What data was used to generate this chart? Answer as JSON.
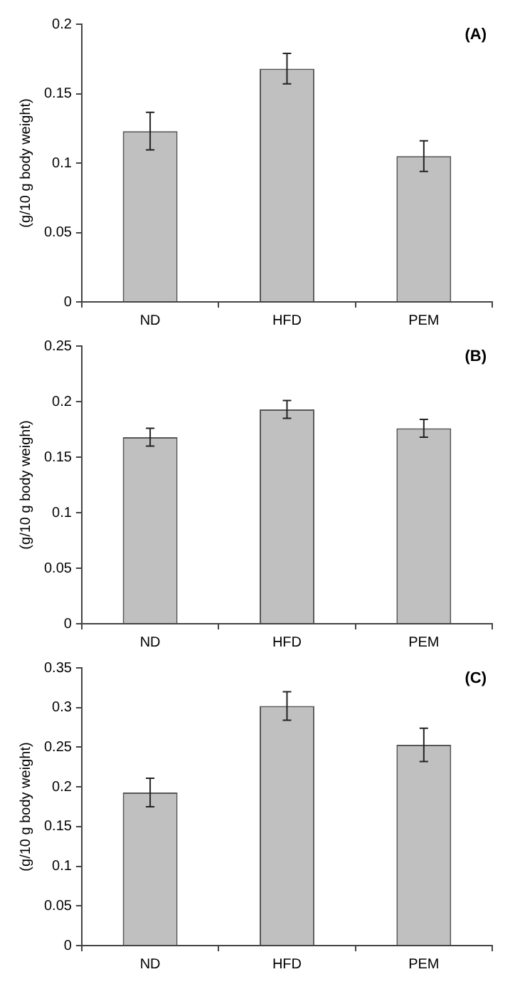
{
  "chart_data": [
    {
      "type": "bar",
      "ylabel": "(g/10 g body weight)",
      "annotations": [
        "(A)"
      ],
      "categories": [
        "ND",
        "HFD",
        "PEM"
      ],
      "values": [
        0.123,
        0.168,
        0.105
      ],
      "errors": [
        0.0135,
        0.011,
        0.011
      ],
      "color": "#c0c0c0",
      "ylim": [
        0,
        0.2
      ],
      "yticks": [
        0,
        0.05,
        0.1,
        0.15,
        0.2
      ],
      "grid": false
    },
    {
      "type": "bar",
      "ylabel": "(g/10 g body weight)",
      "annotations": [
        "(B)"
      ],
      "categories": [
        "ND",
        "HFD",
        "PEM"
      ],
      "values": [
        0.168,
        0.193,
        0.176
      ],
      "errors": [
        0.008,
        0.008,
        0.008
      ],
      "color": "#c0c0c0",
      "ylim": [
        0,
        0.25
      ],
      "yticks": [
        0,
        0.05,
        0.1,
        0.15,
        0.2,
        0.25
      ],
      "grid": false
    },
    {
      "type": "bar",
      "ylabel": "(g/10 g body weight)",
      "annotations": [
        "(C)"
      ],
      "categories": [
        "ND",
        "HFD",
        "PEM"
      ],
      "values": [
        0.193,
        0.302,
        0.253
      ],
      "errors": [
        0.018,
        0.018,
        0.021
      ],
      "color": "#c0c0c0",
      "ylim": [
        0,
        0.35
      ],
      "yticks": [
        0,
        0.05,
        0.1,
        0.15,
        0.2,
        0.25,
        0.3,
        0.35
      ],
      "grid": false
    }
  ]
}
